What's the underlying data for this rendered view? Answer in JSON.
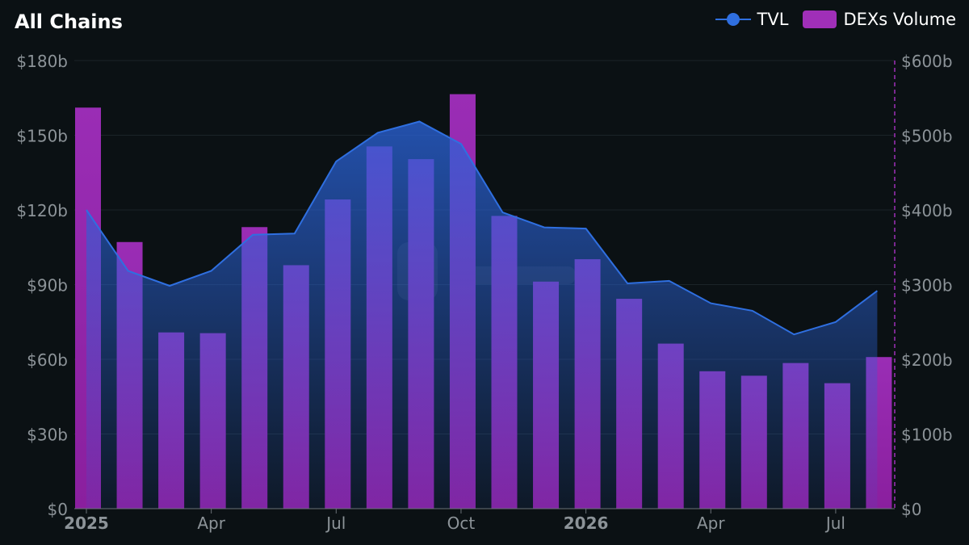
{
  "chart_data": {
    "type": "bar",
    "title": "All Chains",
    "legend": {
      "placement": "top-right",
      "items": [
        {
          "name": "TVL",
          "kind": "line",
          "color": "#2f6fe0"
        },
        {
          "name": "DEXs Volume",
          "kind": "bar",
          "color": "#a02fb8"
        }
      ]
    },
    "x_ticks": [
      {
        "label": "2025",
        "bold": true,
        "index": 0
      },
      {
        "label": "Apr",
        "bold": false,
        "index": 3
      },
      {
        "label": "Jul",
        "bold": false,
        "index": 6
      },
      {
        "label": "Oct",
        "bold": false,
        "index": 9
      },
      {
        "label": "2026",
        "bold": true,
        "index": 12
      },
      {
        "label": "Apr",
        "bold": false,
        "index": 15
      },
      {
        "label": "Jul",
        "bold": false,
        "index": 18
      }
    ],
    "y_left": {
      "ticks": [
        "$0",
        "$30b",
        "$60b",
        "$90b",
        "$120b",
        "$150b",
        "$180b"
      ],
      "range": [
        0,
        180
      ]
    },
    "y_right": {
      "ticks": [
        "$0",
        "$100b",
        "$200b",
        "$300b",
        "$400b",
        "$500b",
        "$600b"
      ],
      "range": [
        0,
        600
      ]
    },
    "grid": true,
    "series": [
      {
        "name": "TVL",
        "type": "area-line",
        "axis": "left",
        "unit": "$b",
        "values": [
          120,
          95.5,
          89.5,
          95.5,
          110,
          110.5,
          139.5,
          151,
          155.5,
          146.5,
          119,
          113,
          112.5,
          90.5,
          91.5,
          82.5,
          79.5,
          70,
          75,
          87.5
        ]
      },
      {
        "name": "DEXs Volume",
        "type": "bar",
        "axis": "right",
        "unit": "$b",
        "values": [
          537,
          357,
          236,
          235,
          377,
          326,
          414,
          485,
          468,
          555,
          392,
          304,
          334,
          281,
          221,
          184,
          178,
          195,
          168,
          203
        ]
      }
    ]
  }
}
